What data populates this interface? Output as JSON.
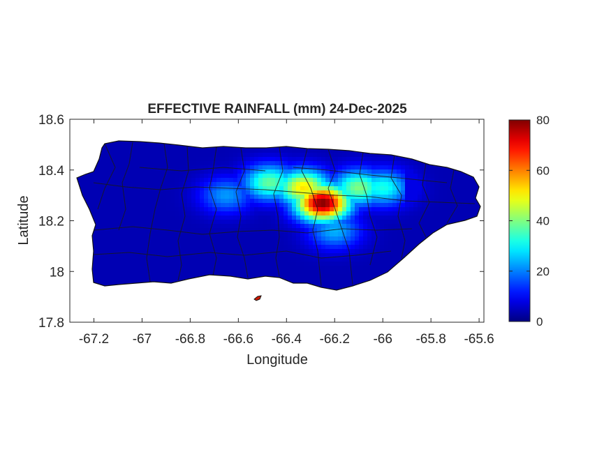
{
  "chart_data": {
    "type": "heatmap",
    "title": "EFFECTIVE RAINFALL (mm) 24-Dec-2025",
    "xlabel": "Longitude",
    "ylabel": "Latitude",
    "xlim": [
      -67.3,
      -65.58
    ],
    "ylim": [
      17.8,
      18.6
    ],
    "xticks": [
      -67.2,
      -67,
      -66.8,
      -66.6,
      -66.4,
      -66.2,
      -66,
      -65.8,
      -65.6
    ],
    "xtick_labels": [
      "-67.2",
      "-67",
      "-66.8",
      "-66.6",
      "-66.4",
      "-66.2",
      "-66",
      "-65.8",
      "-65.6"
    ],
    "yticks": [
      17.8,
      18,
      18.2,
      18.4,
      18.6
    ],
    "ytick_labels": [
      "17.8",
      "18",
      "18.2",
      "18.4",
      "18.6"
    ],
    "grid": false,
    "colorbar": {
      "colormap": "jet",
      "range": [
        0,
        80
      ],
      "ticks": [
        0,
        20,
        40,
        60,
        80
      ],
      "tick_labels": [
        "0",
        "20",
        "40",
        "60",
        "80"
      ]
    },
    "rain_field_peaks": [
      {
        "lon": -66.25,
        "lat": 18.27,
        "value": 80
      },
      {
        "lon": -66.33,
        "lat": 18.33,
        "value": 52
      },
      {
        "lon": -66.1,
        "lat": 18.33,
        "value": 40
      },
      {
        "lon": -66.47,
        "lat": 18.35,
        "value": 38
      },
      {
        "lon": -66.0,
        "lat": 18.33,
        "value": 32
      },
      {
        "lon": -66.65,
        "lat": 18.3,
        "value": 22
      },
      {
        "lon": -66.2,
        "lat": 18.16,
        "value": 24
      }
    ],
    "background_value": 4
  }
}
